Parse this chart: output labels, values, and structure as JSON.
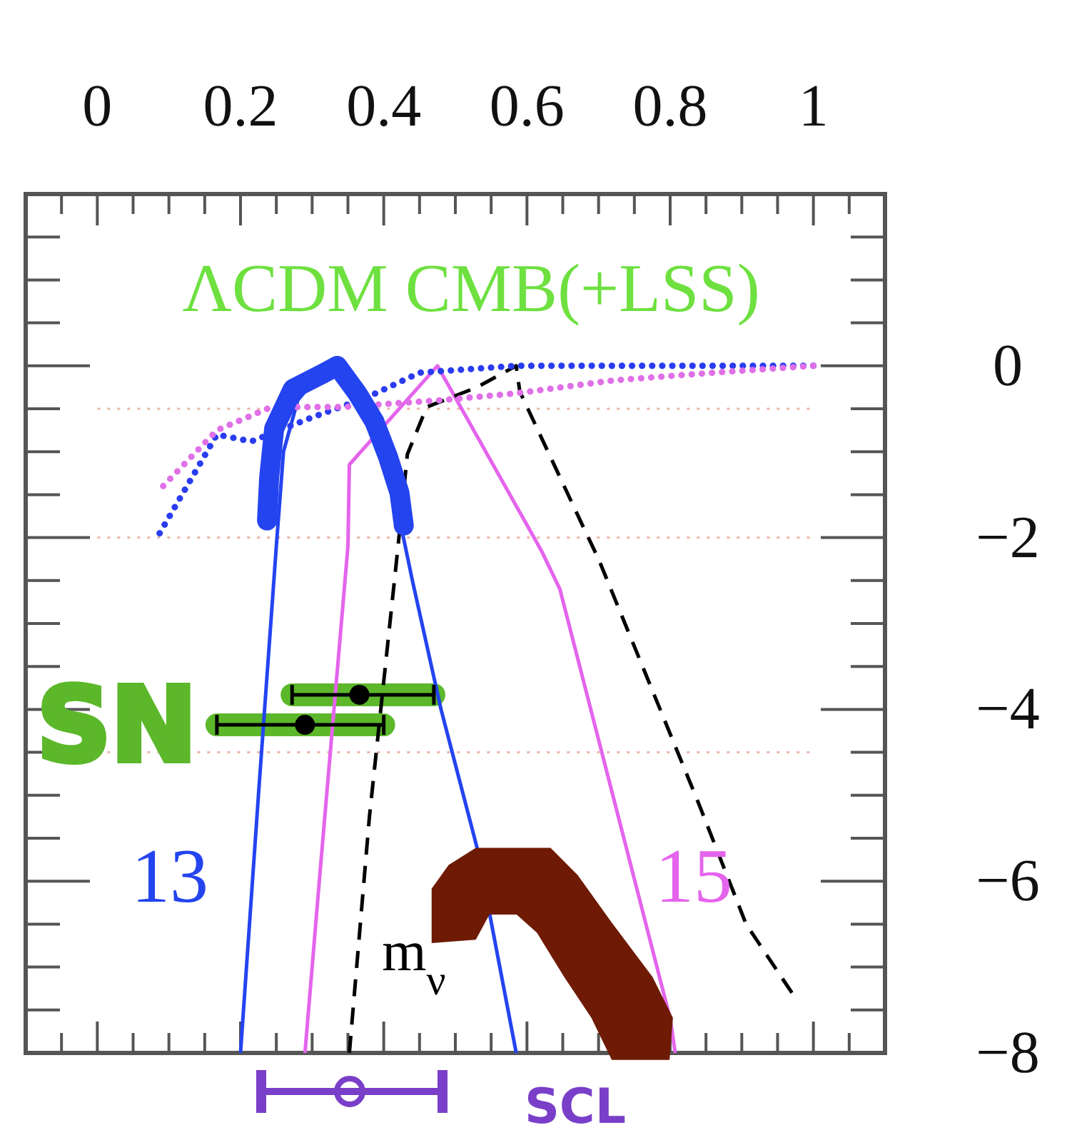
{
  "chart_data": {
    "type": "line",
    "title": "ΛCDM CMB(+LSS)",
    "xlim": [
      -0.1,
      1.1
    ],
    "ylim": [
      -8,
      2
    ],
    "xticks": [
      {
        "value": -0.05,
        "label": null
      },
      0,
      {
        "value": 0.05,
        "label": null
      },
      {
        "value": 0.1,
        "label": null
      },
      {
        "value": 0.15,
        "label": null
      },
      0.2,
      {
        "value": 0.25,
        "label": null
      },
      {
        "value": 0.3,
        "label": null
      },
      {
        "value": 0.35,
        "label": null
      },
      0.4,
      {
        "value": 0.45,
        "label": null
      },
      {
        "value": 0.5,
        "label": null
      },
      {
        "value": 0.55,
        "label": null
      },
      0.6,
      {
        "value": 0.65,
        "label": null
      },
      {
        "value": 0.7,
        "label": null
      },
      {
        "value": 0.75,
        "label": null
      },
      0.8,
      {
        "value": 0.85,
        "label": null
      },
      {
        "value": 0.9,
        "label": null
      },
      {
        "value": 0.95,
        "label": null
      },
      1,
      {
        "value": 1.05,
        "label": null
      }
    ],
    "yticks": [
      0,
      {
        "value": -2,
        "label": "−2"
      },
      {
        "value": -4,
        "label": "−4"
      },
      {
        "value": -6,
        "label": "−6"
      },
      {
        "value": -8,
        "label": "−8"
      }
    ],
    "grid": false,
    "series": [
      {
        "color": "#2444f0",
        "line_style": "solid",
        "x": [
          0.2,
          0.225,
          0.25,
          0.26,
          0.28,
          0.31,
          0.335,
          0.36,
          0.39,
          0.42,
          0.44,
          0.48,
          0.53,
          0.585
        ],
        "values": [
          -8,
          -5,
          -2.1,
          -1,
          -0.4,
          -0.1,
          0,
          -0.3,
          -0.8,
          -1.7,
          -2.5,
          -4,
          -5.6,
          -8
        ]
      },
      {
        "color": "#e464ec",
        "line_style": "solid",
        "x": [
          0.29,
          0.31,
          0.35,
          0.352,
          0.475,
          0.62,
          0.646,
          0.8,
          0.807
        ],
        "values": [
          -8,
          -6,
          -2.1,
          -1.15,
          0,
          -2.15,
          -2.6,
          -7.6,
          -8
        ]
      },
      {
        "color": "#000000",
        "line_style": "dashed",
        "x": [
          0.352,
          0.38,
          0.42,
          0.433,
          0.46,
          0.53,
          0.585,
          0.59,
          0.68,
          0.7,
          0.84,
          0.906,
          0.97
        ],
        "values": [
          -8,
          -5.25,
          -2.1,
          -1.03,
          -0.48,
          -0.25,
          0,
          -0.3,
          -1.9,
          -2.25,
          -5.1,
          -6.5,
          -7.3
        ]
      },
      {
        "color": "#2a3cf0",
        "line_style": "dotted",
        "x": [
          0.087,
          0.167,
          0.215,
          0.3,
          0.376,
          0.45,
          0.585,
          0.8,
          1.0
        ],
        "values": [
          -1.95,
          -0.8,
          -0.88,
          -0.6,
          -0.37,
          -0.08,
          0,
          0,
          0
        ]
      },
      {
        "color": "#e070e8",
        "line_style": "dotted",
        "x": [
          0.092,
          0.167,
          0.243,
          0.34,
          0.48,
          0.585,
          0.72,
          0.86,
          1.0
        ],
        "values": [
          -1.4,
          -0.75,
          -0.48,
          -0.48,
          -0.4,
          -0.32,
          -0.17,
          -0.08,
          0
        ]
      },
      {
        "type": "scatter",
        "color": "#000000",
        "marker": "circle",
        "x": [
          0.366,
          0.29
        ],
        "values": [
          -3.83,
          -4.18
        ],
        "xerrors": [
          [
            0.272,
            0.47
          ],
          [
            0.167,
            0.4
          ]
        ]
      },
      {
        "color": "#2444f0",
        "line_style": "solid",
        "x": [
          0.237,
          0.24,
          0.247,
          0.273,
          0.313,
          0.335,
          0.363,
          0.387,
          0.406,
          0.422,
          0.428
        ],
        "values": [
          -1.8,
          -1.3,
          -0.73,
          -0.27,
          -0.1,
          0,
          -0.32,
          -0.65,
          -1.06,
          -1.48,
          -1.86
        ]
      }
    ],
    "ref_lines": [
      {
        "axis": "y",
        "value": -0.5,
        "color": "#eab8a8",
        "line_style": "dotted"
      },
      {
        "axis": "y",
        "value": -2,
        "color": "#eab8a8",
        "line_style": "dotted"
      },
      {
        "axis": "y",
        "value": -4.5,
        "color": "#eab8a8",
        "line_style": "dotted"
      }
    ],
    "annotations": [
      "13",
      "15",
      "m$_{ν}$",
      {
        "text": "SN",
        "x": 0.167,
        "y": -4.18
      },
      "SCL"
    ]
  }
}
